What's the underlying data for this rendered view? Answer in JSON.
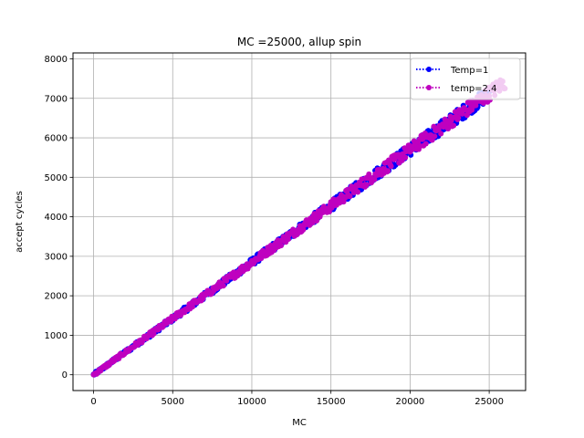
{
  "chart_data": {
    "type": "line",
    "title": "MC =25000, allup spin",
    "xlabel": "MC",
    "ylabel": "accept cycles",
    "xlim": [
      -1300,
      27300
    ],
    "ylim": [
      -400,
      8150
    ],
    "xticks": [
      0,
      5000,
      10000,
      15000,
      20000,
      25000
    ],
    "yticks": [
      0,
      1000,
      2000,
      3000,
      4000,
      5000,
      6000,
      7000,
      8000
    ],
    "grid": true,
    "legend_position": "top-right",
    "series": [
      {
        "name": "Temp=1",
        "color": "#0000ff",
        "line_style": "dotted",
        "marker": "circle",
        "x_range": [
          0,
          25000
        ],
        "slope": 0.285,
        "points": [
          [
            0,
            0
          ],
          [
            2500,
            720
          ],
          [
            5000,
            1430
          ],
          [
            7500,
            2140
          ],
          [
            10000,
            2860
          ],
          [
            12500,
            3560
          ],
          [
            15000,
            4280
          ],
          [
            17500,
            4990
          ],
          [
            20000,
            5700
          ],
          [
            22500,
            6420
          ],
          [
            25000,
            7130
          ]
        ]
      },
      {
        "name": "temp=2.4",
        "color": "#bf00bf",
        "line_style": "dotted",
        "marker": "circle",
        "x_range": [
          0,
          26000
        ],
        "slope": 0.285,
        "points": [
          [
            0,
            0
          ],
          [
            2500,
            710
          ],
          [
            5000,
            1420
          ],
          [
            7500,
            2130
          ],
          [
            10000,
            2850
          ],
          [
            12500,
            3560
          ],
          [
            15000,
            4270
          ],
          [
            17500,
            4990
          ],
          [
            20000,
            5700
          ],
          [
            22500,
            6410
          ],
          [
            25000,
            7130
          ],
          [
            26000,
            7420
          ]
        ]
      }
    ]
  }
}
